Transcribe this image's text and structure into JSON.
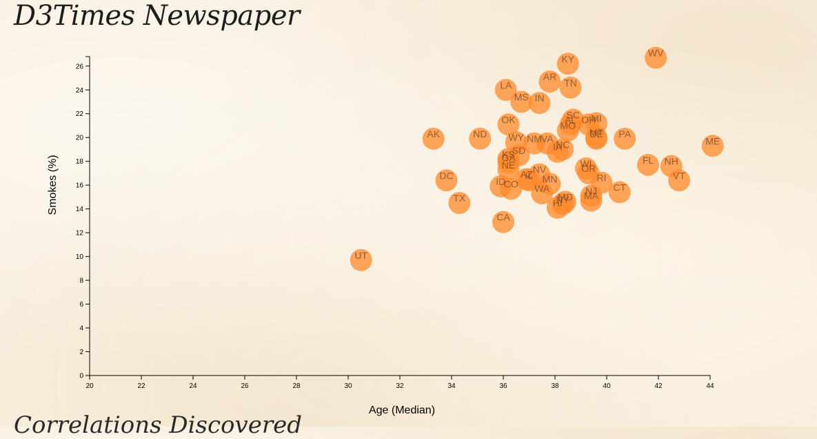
{
  "header": {
    "title": "D3Times Newspaper",
    "subtitle_partial": "Correlations Discovered"
  },
  "colors": {
    "point": "#ff8a2b",
    "background": "#f8eedd"
  },
  "chart_data": {
    "type": "scatter",
    "xlabel": "Age (Median)",
    "ylabel": "Smokes (%)",
    "xlim": [
      20,
      44
    ],
    "ylim": [
      0,
      26.8
    ],
    "xticks": [
      "20",
      "22",
      "24",
      "26",
      "28",
      "30",
      "32",
      "34",
      "36",
      "38",
      "40",
      "42",
      "44"
    ],
    "yticks": [
      "0",
      "2",
      "4",
      "6",
      "8",
      "10",
      "12",
      "14",
      "16",
      "18",
      "20",
      "22",
      "24",
      "26"
    ],
    "points": [
      {
        "label": "AL",
        "x": 38.6,
        "y": 21.1
      },
      {
        "label": "AK",
        "x": 33.3,
        "y": 19.9
      },
      {
        "label": "AZ",
        "x": 36.9,
        "y": 16.5
      },
      {
        "label": "AR",
        "x": 37.8,
        "y": 24.7
      },
      {
        "label": "CA",
        "x": 36.0,
        "y": 12.9
      },
      {
        "label": "CO",
        "x": 36.3,
        "y": 15.7
      },
      {
        "label": "CT",
        "x": 40.5,
        "y": 15.4
      },
      {
        "label": "DE",
        "x": 39.6,
        "y": 19.9
      },
      {
        "label": "DC",
        "x": 33.8,
        "y": 16.4
      },
      {
        "label": "FL",
        "x": 41.6,
        "y": 17.7
      },
      {
        "label": "GA",
        "x": 36.2,
        "y": 17.9
      },
      {
        "label": "HI",
        "x": 38.1,
        "y": 14.1
      },
      {
        "label": "ID",
        "x": 35.9,
        "y": 15.9
      },
      {
        "label": "IL",
        "x": 37.0,
        "y": 16.4
      },
      {
        "label": "IN",
        "x": 37.4,
        "y": 22.9
      },
      {
        "label": "IA",
        "x": 38.1,
        "y": 18.8
      },
      {
        "label": "KS",
        "x": 36.2,
        "y": 18.2
      },
      {
        "label": "KY",
        "x": 38.5,
        "y": 26.2
      },
      {
        "label": "LA",
        "x": 36.1,
        "y": 24.0
      },
      {
        "label": "ME",
        "x": 44.1,
        "y": 19.3
      },
      {
        "label": "MD",
        "x": 38.4,
        "y": 14.6
      },
      {
        "label": "MA",
        "x": 39.4,
        "y": 14.7
      },
      {
        "label": "MI",
        "x": 39.6,
        "y": 21.2
      },
      {
        "label": "MN",
        "x": 37.8,
        "y": 16.1
      },
      {
        "label": "MS",
        "x": 36.7,
        "y": 23.0
      },
      {
        "label": "MO",
        "x": 38.5,
        "y": 20.6
      },
      {
        "label": "MT",
        "x": 39.6,
        "y": 20.0
      },
      {
        "label": "NE",
        "x": 36.2,
        "y": 17.3
      },
      {
        "label": "NV",
        "x": 37.4,
        "y": 16.9
      },
      {
        "label": "NH",
        "x": 42.5,
        "y": 17.6
      },
      {
        "label": "NJ",
        "x": 39.4,
        "y": 15.1
      },
      {
        "label": "NM",
        "x": 37.2,
        "y": 19.5
      },
      {
        "label": "NY",
        "x": 38.3,
        "y": 14.4
      },
      {
        "label": "NC",
        "x": 38.3,
        "y": 19.0
      },
      {
        "label": "ND",
        "x": 35.1,
        "y": 19.9
      },
      {
        "label": "OH",
        "x": 39.3,
        "y": 21.1
      },
      {
        "label": "OK",
        "x": 36.2,
        "y": 21.1
      },
      {
        "label": "OR",
        "x": 39.3,
        "y": 17.0
      },
      {
        "label": "PA",
        "x": 40.7,
        "y": 19.9
      },
      {
        "label": "RI",
        "x": 39.8,
        "y": 16.2
      },
      {
        "label": "SC",
        "x": 38.7,
        "y": 21.5
      },
      {
        "label": "SD",
        "x": 36.6,
        "y": 18.5
      },
      {
        "label": "TN",
        "x": 38.6,
        "y": 24.2
      },
      {
        "label": "TX",
        "x": 34.3,
        "y": 14.5
      },
      {
        "label": "UT",
        "x": 30.5,
        "y": 9.7
      },
      {
        "label": "VT",
        "x": 42.8,
        "y": 16.4
      },
      {
        "label": "VA",
        "x": 37.7,
        "y": 19.5
      },
      {
        "label": "WA",
        "x": 37.5,
        "y": 15.3
      },
      {
        "label": "WV",
        "x": 41.9,
        "y": 26.7
      },
      {
        "label": "WI",
        "x": 39.2,
        "y": 17.4
      },
      {
        "label": "WY",
        "x": 36.5,
        "y": 19.6
      }
    ]
  }
}
